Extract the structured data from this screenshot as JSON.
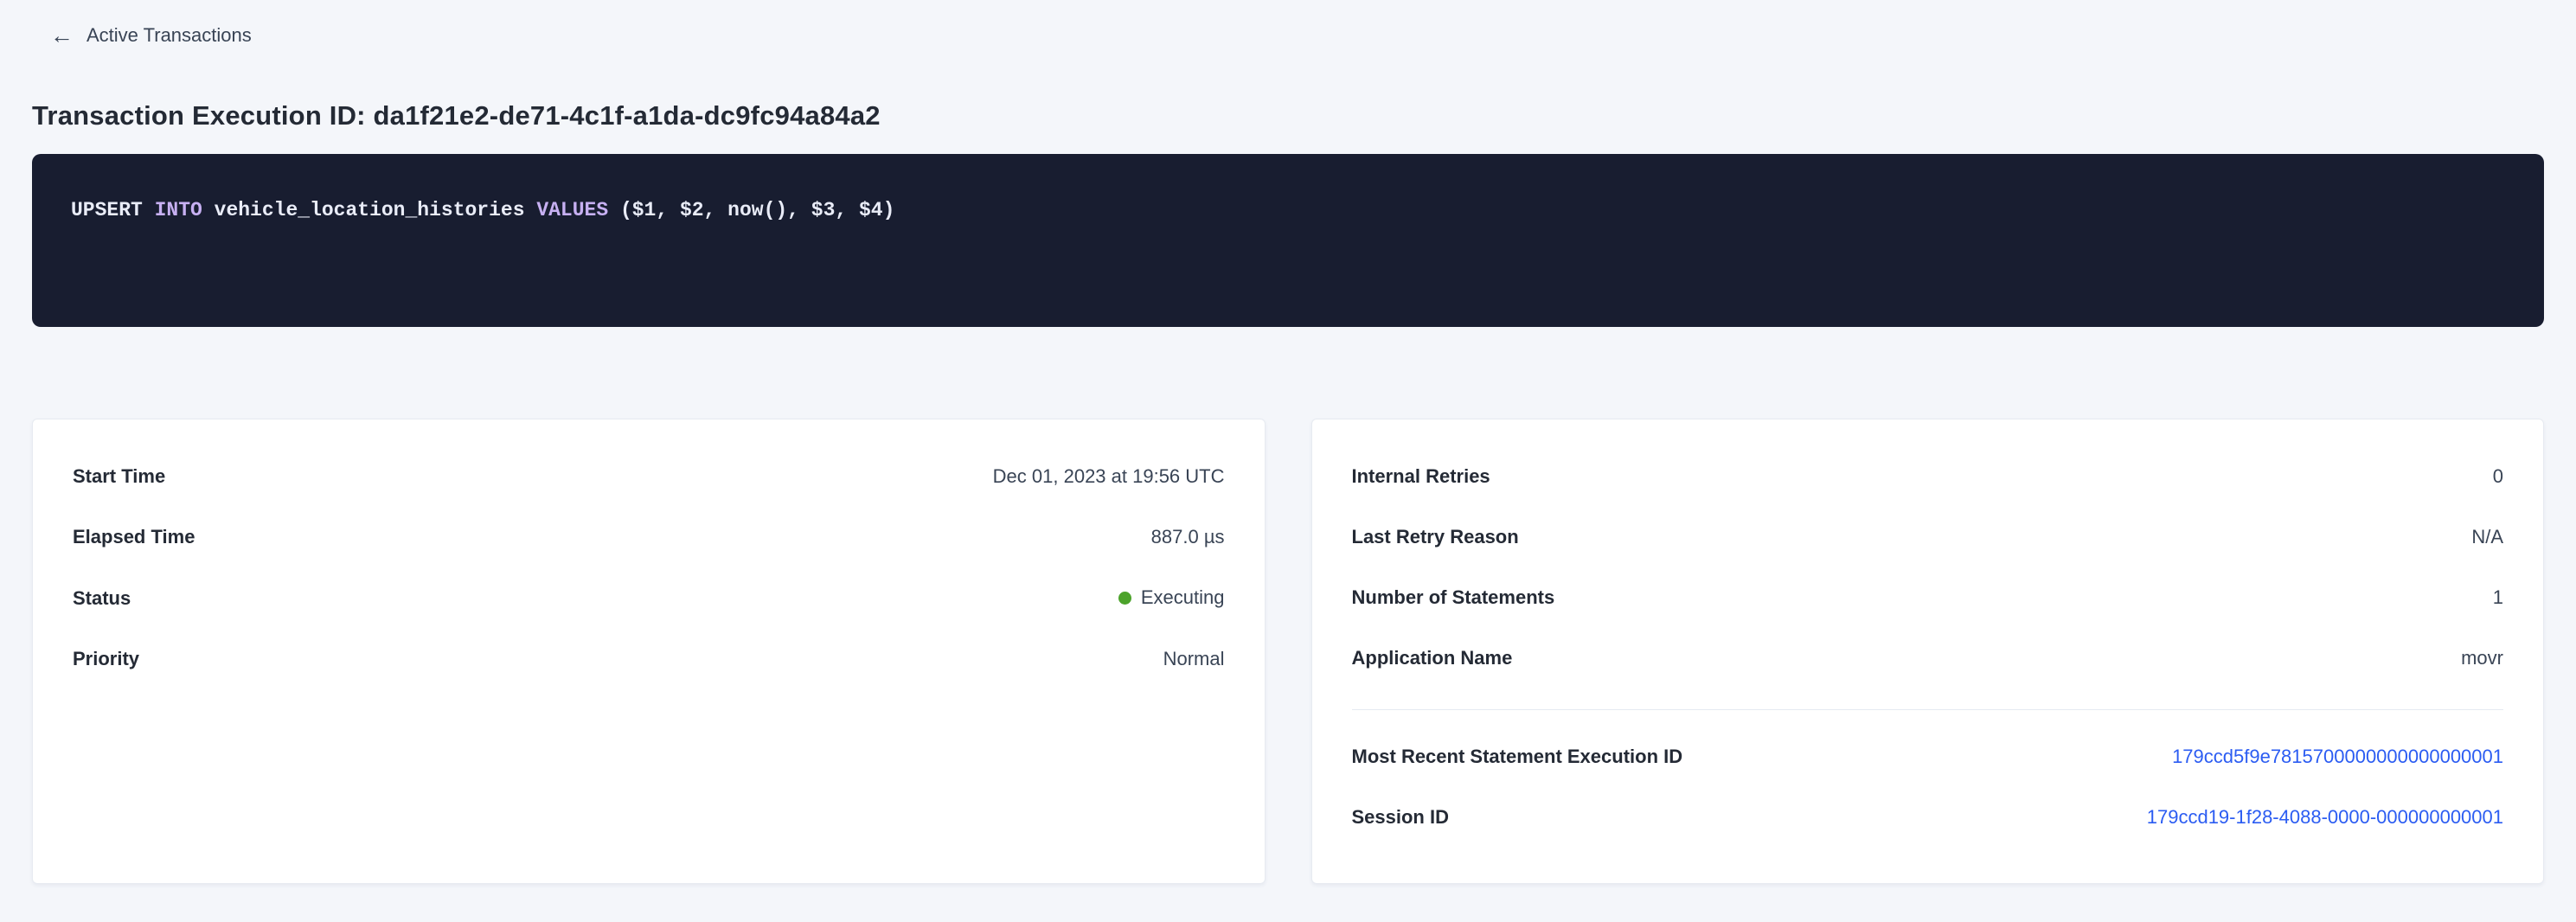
{
  "colors": {
    "page-bg": "#f4f6fa",
    "card-bg": "#ffffff",
    "card-border": "#e7ebf1",
    "text-dark": "#242a35",
    "text-body": "#394455",
    "link-blue": "#2b5cf2",
    "status-green": "#4ca32b",
    "sql-bg": "#181d30",
    "sql-plain": "#e9ecf7",
    "sql-keyword": "#c7b0f2",
    "divider": "#e5eaf1"
  },
  "header": {
    "back_arrow": "←",
    "back_label": "Active Transactions",
    "title": "Transaction Execution ID: da1f21e2-de71-4c1f-a1da-dc9fc94a84a2"
  },
  "sql": {
    "tokens": [
      {
        "text": "UPSERT ",
        "type": "plain"
      },
      {
        "text": "INTO",
        "type": "keyword"
      },
      {
        "text": " vehicle_location_histories ",
        "type": "plain"
      },
      {
        "text": "VALUES",
        "type": "keyword"
      },
      {
        "text": " ($1, $2, now(), $3, $4)",
        "type": "plain"
      }
    ]
  },
  "cards": {
    "left": {
      "rows": [
        {
          "label": "Start Time",
          "value": "Dec 01, 2023 at 19:56 UTC"
        },
        {
          "label": "Elapsed Time",
          "value": "887.0 µs"
        },
        {
          "label": "Status",
          "value": "Executing"
        },
        {
          "label": "Priority",
          "value": "Normal"
        }
      ]
    },
    "right": {
      "rows": [
        {
          "label": "Internal Retries",
          "value": "0"
        },
        {
          "label": "Last Retry Reason",
          "value": "N/A"
        },
        {
          "label": "Number of Statements",
          "value": "1"
        },
        {
          "label": "Application Name",
          "value": "movr"
        }
      ],
      "link_rows": [
        {
          "label": "Most Recent Statement Execution ID",
          "value": "179ccd5f9e7815700000000000000001"
        },
        {
          "label": "Session ID",
          "value": "179ccd19-1f28-4088-0000-000000000001"
        }
      ]
    }
  }
}
